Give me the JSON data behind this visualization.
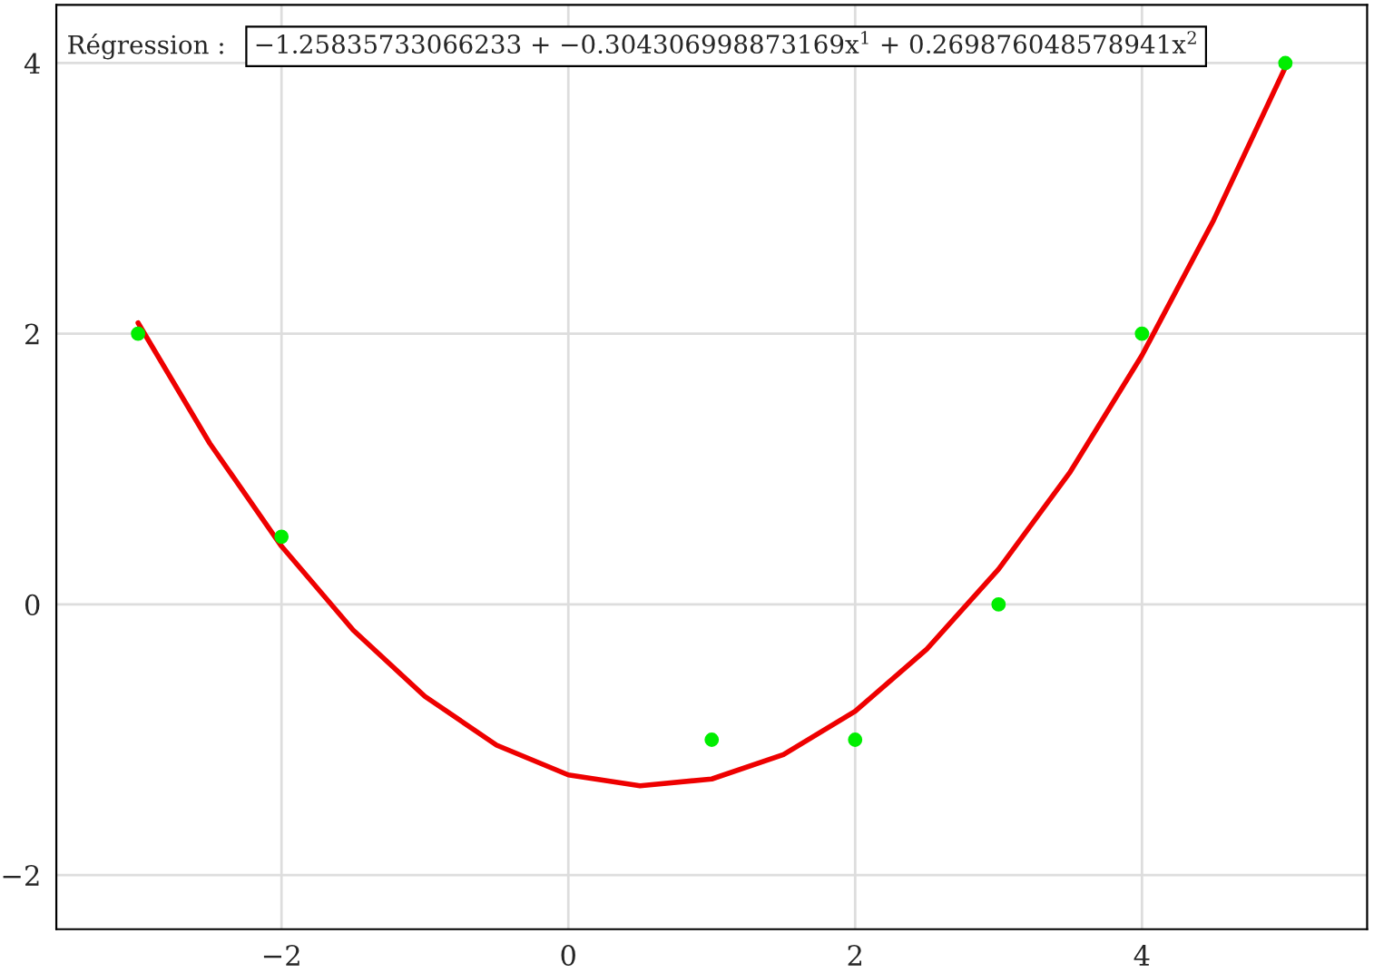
{
  "chart_data": {
    "type": "scatter",
    "series": [
      {
        "color": "#00ee00",
        "marker": "circle",
        "x": [
          -3,
          -2,
          1,
          2,
          3,
          4,
          5
        ],
        "values": [
          2,
          0.5,
          -1,
          -1,
          0,
          2,
          4
        ]
      },
      {
        "type": "line",
        "color": "#ee0000",
        "marker": "none",
        "line_style": "solid",
        "x": [
          -3,
          -2.5,
          -2,
          -1.5,
          -1,
          -0.5,
          0,
          0.5,
          1,
          1.5,
          2,
          2.5,
          3,
          3.5,
          4,
          4.5,
          5
        ],
        "values": [
          2.08,
          1.19,
          0.43,
          -0.19,
          -0.68,
          -1.04,
          -1.26,
          -1.34,
          -1.29,
          -1.11,
          -0.79,
          -0.33,
          0.26,
          0.98,
          1.84,
          2.84,
          3.97
        ]
      }
    ],
    "xlim": [
      -3.57,
      5.57
    ],
    "ylim": [
      -2.4,
      4.43
    ],
    "xticks": [
      {
        "value": -2,
        "label": "−2"
      },
      0,
      2,
      4
    ],
    "yticks": [
      {
        "value": -2,
        "label": "−2"
      },
      0,
      2,
      4
    ],
    "grid": true,
    "annotations": [
      "Régression : ",
      "−1.25835733066233 + −0.304306998873169x$^{1}$ + 0.269876048578941x$^{2}$"
    ]
  }
}
